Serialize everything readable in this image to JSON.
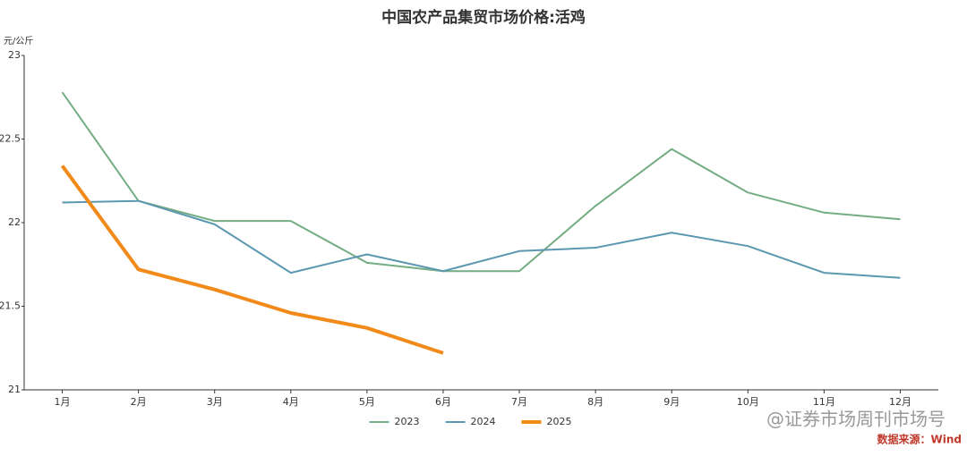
{
  "chart_data": {
    "type": "line",
    "title": "中国农产品集贸市场价格:活鸡",
    "y_label": "元/公斤",
    "source": "数据来源：Wind",
    "watermark": "@证券市场周刊市场号",
    "categories": [
      "1月",
      "2月",
      "3月",
      "4月",
      "5月",
      "6月",
      "7月",
      "8月",
      "9月",
      "10月",
      "11月",
      "12月"
    ],
    "series": [
      {
        "name": "2023",
        "color": "#74ad83",
        "width": 2,
        "values": [
          22.78,
          22.13,
          22.01,
          22.01,
          21.76,
          21.71,
          21.71,
          22.1,
          22.44,
          22.18,
          22.06,
          22.02
        ]
      },
      {
        "name": "2024",
        "color": "#5b97b0",
        "width": 2,
        "values": [
          22.12,
          22.13,
          21.99,
          21.7,
          21.81,
          21.71,
          21.83,
          21.85,
          21.94,
          21.86,
          21.7,
          21.67
        ]
      },
      {
        "name": "2025",
        "color": "#f28a1a",
        "width": 4,
        "values": [
          22.34,
          21.72,
          21.6,
          21.46,
          21.37,
          21.22,
          null,
          null,
          null,
          null,
          null,
          null
        ]
      }
    ],
    "ylim": [
      21,
      23
    ],
    "yticks": [
      21,
      21.5,
      22,
      22.5,
      23
    ],
    "grid": false
  }
}
